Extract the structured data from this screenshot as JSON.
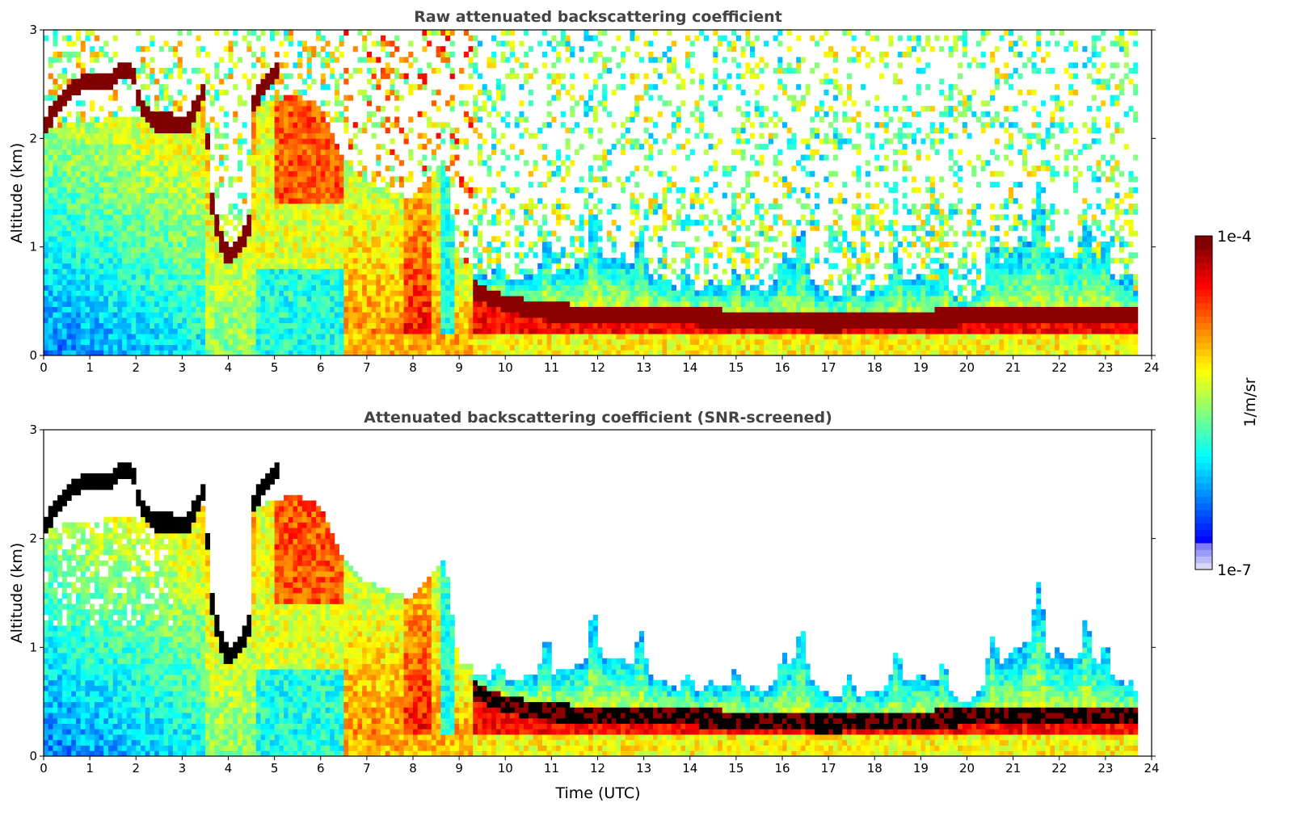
{
  "chart_data": {
    "type": "heatmap",
    "panels": [
      {
        "title": "Raw attenuated backscattering coefficient",
        "ylabel": "Altitude (km)",
        "xlabel": "",
        "screened": false
      },
      {
        "title": "Attenuated backscattering coefficient (SNR-screened)",
        "ylabel": "Altitude (km)",
        "xlabel": "Time (UTC)",
        "screened": true
      }
    ],
    "xlim": [
      0,
      24
    ],
    "ylim": [
      0,
      3
    ],
    "x_ticks": [
      "0",
      "1",
      "2",
      "3",
      "4",
      "5",
      "6",
      "7",
      "8",
      "9",
      "10",
      "11",
      "12",
      "13",
      "14",
      "15",
      "16",
      "17",
      "18",
      "19",
      "20",
      "21",
      "22",
      "23",
      "24"
    ],
    "y_ticks": [
      "0",
      "1",
      "2",
      "3"
    ],
    "data_end_time": 23.7,
    "colorbar": {
      "label": "1/m/sr",
      "min_label": "1e-7",
      "max_label": "1e-4",
      "scale": "log",
      "range": [
        -7,
        -4
      ],
      "colormap": "jet"
    },
    "features": {
      "cloud_layer_altitude_km": [
        [
          0,
          2.1
        ],
        [
          0.3,
          2.3
        ],
        [
          0.6,
          2.45
        ],
        [
          1,
          2.55
        ],
        [
          1.4,
          2.5
        ],
        [
          1.6,
          2.6
        ],
        [
          1.9,
          2.65
        ],
        [
          2.1,
          2.3
        ],
        [
          2.4,
          2.15
        ],
        [
          2.8,
          2.15
        ],
        [
          3.1,
          2.1
        ],
        [
          3.3,
          2.3
        ],
        [
          3.5,
          2.45
        ],
        [
          3.6,
          1.5
        ],
        [
          3.8,
          1.1
        ],
        [
          4.0,
          0.9
        ],
        [
          4.3,
          1.05
        ],
        [
          4.45,
          1.2
        ],
        [
          4.5,
          2.3
        ],
        [
          4.8,
          2.5
        ],
        [
          5.1,
          2.65
        ]
      ],
      "boundary_layer_top_km": [
        [
          8.9,
          0.7
        ],
        [
          10,
          0.5
        ],
        [
          11,
          0.42
        ],
        [
          14,
          0.38
        ],
        [
          17,
          0.32
        ],
        [
          20,
          0.38
        ],
        [
          23.7,
          0.38
        ]
      ],
      "convective_top_km": [
        [
          9,
          0.85
        ],
        [
          10,
          0.8
        ],
        [
          11,
          1.0
        ],
        [
          12,
          1.2
        ],
        [
          12.5,
          1.25
        ],
        [
          13,
          1.0
        ],
        [
          14,
          0.7
        ],
        [
          14.8,
          0.85
        ],
        [
          15.5,
          0.7
        ],
        [
          16,
          1.0
        ],
        [
          16.3,
          1.25
        ],
        [
          17,
          0.65
        ],
        [
          18,
          0.75
        ],
        [
          19,
          1.0
        ],
        [
          20,
          0.55
        ],
        [
          20.8,
          1.2
        ],
        [
          21.4,
          1.55
        ],
        [
          22,
          1.2
        ],
        [
          22.5,
          1.25
        ],
        [
          23,
          1.15
        ],
        [
          23.7,
          0.6
        ]
      ],
      "aerosol_top_km": [
        [
          0,
          2.1
        ],
        [
          3.5,
          2.3
        ],
        [
          4.5,
          2.3
        ],
        [
          5.5,
          2.4
        ],
        [
          6,
          2.3
        ],
        [
          6.5,
          1.8
        ],
        [
          7,
          1.6
        ],
        [
          8,
          1.45
        ],
        [
          8.7,
          1.8
        ],
        [
          9,
          0.85
        ]
      ]
    }
  }
}
